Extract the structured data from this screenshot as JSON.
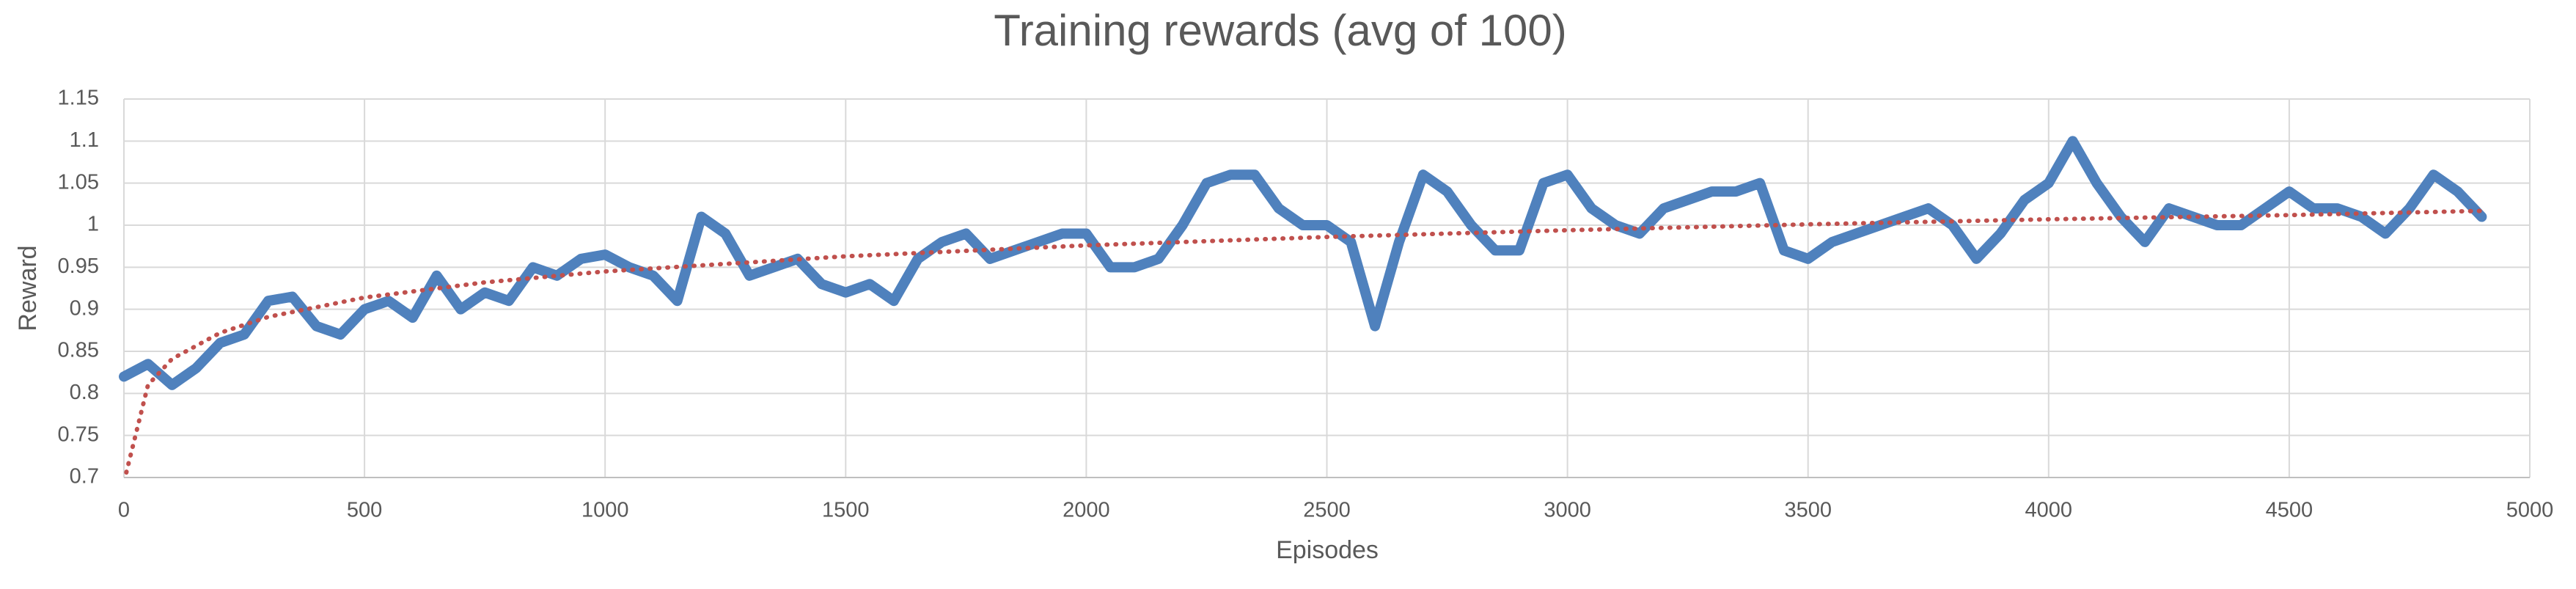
{
  "chart_data": {
    "type": "line",
    "title": "Training rewards (avg of 100)",
    "x_label": "Episodes",
    "y_label": "Reward",
    "xlim": [
      0,
      5000
    ],
    "xticks": [
      0,
      500,
      1000,
      1500,
      2000,
      2500,
      3000,
      3500,
      4000,
      4500,
      5000
    ],
    "ylim": [
      0.7,
      1.15
    ],
    "yticks": [
      0.7,
      0.75,
      0.8,
      0.85,
      0.9,
      0.95,
      1,
      1.05,
      1.1,
      1.15
    ],
    "grid": true,
    "series": [
      {
        "color": "#4f81bd",
        "style": "solid",
        "x": [
          0,
          50,
          100,
          150,
          200,
          250,
          300,
          350,
          400,
          450,
          500,
          550,
          600,
          650,
          700,
          750,
          800,
          850,
          900,
          950,
          1000,
          1050,
          1100,
          1150,
          1200,
          1250,
          1300,
          1350,
          1400,
          1450,
          1500,
          1550,
          1600,
          1650,
          1700,
          1750,
          1800,
          1850,
          1900,
          1950,
          2000,
          2050,
          2100,
          2150,
          2200,
          2250,
          2300,
          2350,
          2400,
          2450,
          2500,
          2550,
          2600,
          2650,
          2700,
          2750,
          2800,
          2850,
          2900,
          2950,
          3000,
          3050,
          3100,
          3150,
          3200,
          3250,
          3300,
          3350,
          3400,
          3450,
          3500,
          3550,
          3600,
          3650,
          3700,
          3750,
          3800,
          3850,
          3900,
          3950,
          4000,
          4050,
          4100,
          4150,
          4200,
          4250,
          4300,
          4350,
          4400,
          4450,
          4500,
          4550,
          4600,
          4650,
          4700,
          4750,
          4800,
          4850,
          4900
        ],
        "values": [
          0.82,
          0.835,
          0.81,
          0.83,
          0.86,
          0.87,
          0.91,
          0.915,
          0.88,
          0.87,
          0.9,
          0.91,
          0.89,
          0.94,
          0.9,
          0.92,
          0.91,
          0.95,
          0.94,
          0.96,
          0.965,
          0.95,
          0.94,
          0.91,
          1.01,
          0.99,
          0.94,
          0.95,
          0.96,
          0.93,
          0.92,
          0.93,
          0.91,
          0.96,
          0.98,
          0.99,
          0.96,
          0.97,
          0.98,
          0.99,
          0.99,
          0.95,
          0.95,
          0.96,
          1.0,
          1.05,
          1.06,
          1.06,
          1.02,
          1.0,
          1.0,
          0.98,
          0.88,
          0.98,
          1.06,
          1.04,
          1.0,
          0.97,
          0.97,
          1.05,
          1.06,
          1.02,
          1.0,
          0.99,
          1.02,
          1.03,
          1.04,
          1.04,
          1.05,
          0.97,
          0.96,
          0.98,
          0.99,
          1.0,
          1.01,
          1.02,
          1.0,
          0.96,
          0.99,
          1.03,
          1.05,
          1.1,
          1.05,
          1.01,
          0.98,
          1.02,
          1.01,
          1.0,
          1.0,
          1.02,
          1.04,
          1.02,
          1.02,
          1.01,
          0.99,
          1.02,
          1.06,
          1.04,
          1.01
        ]
      },
      {
        "color": "#c0504d",
        "style": "dotted",
        "x": [
          5,
          50,
          100,
          200,
          300,
          500,
          750,
          1000,
          1500,
          2000,
          2500,
          3000,
          3500,
          4000,
          4500,
          4900
        ],
        "values": [
          0.706,
          0.81,
          0.841,
          0.872,
          0.891,
          0.914,
          0.932,
          0.945,
          0.963,
          0.976,
          0.986,
          0.994,
          1.001,
          1.007,
          1.012,
          1.017
        ]
      }
    ]
  }
}
